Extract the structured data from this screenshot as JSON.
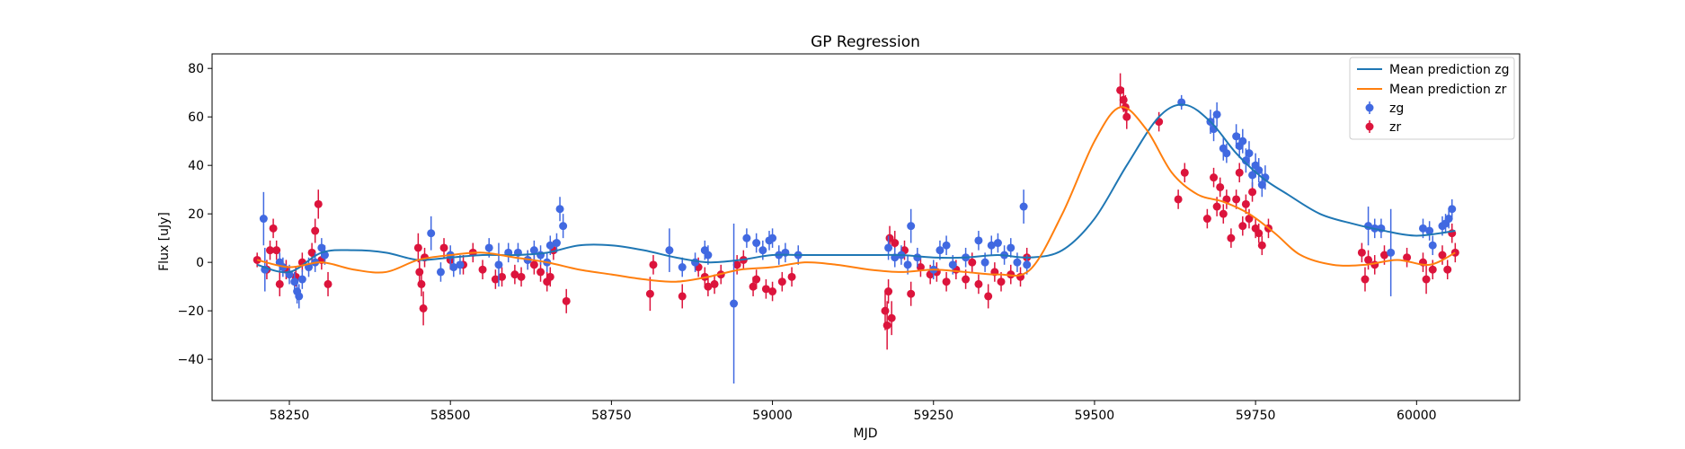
{
  "chart_data": {
    "type": "scatter",
    "title": "GP Regression",
    "xlabel": "MJD",
    "ylabel": "Flux [uJy]",
    "xlim": [
      58130,
      60160
    ],
    "ylim": [
      -57,
      86
    ],
    "xticks": [
      58250,
      58500,
      58750,
      59000,
      59250,
      59500,
      59750,
      60000
    ],
    "yticks": [
      -40,
      -20,
      0,
      20,
      40,
      60,
      80
    ],
    "grid": false,
    "legend_position": "top-right",
    "legend": [
      "Mean prediction zg",
      "Mean prediction zr",
      "zg",
      "zr"
    ],
    "colors": {
      "mean_zg": "#1f77b4",
      "mean_zr": "#ff7f0e",
      "zg": "#4169e1",
      "zr": "#dc143c"
    },
    "lines": [
      {
        "name": "Mean prediction zg",
        "color": "#1f77b4",
        "x": [
          58200,
          58250,
          58300,
          58350,
          58400,
          58450,
          58500,
          58550,
          58600,
          58650,
          58700,
          58750,
          58800,
          58850,
          58900,
          58950,
          59000,
          59050,
          59100,
          59150,
          59200,
          59250,
          59300,
          59350,
          59400,
          59450,
          59500,
          59550,
          59600,
          59640,
          59680,
          59720,
          59760,
          59800,
          59850,
          59900,
          59950,
          60000,
          60060
        ],
        "y": [
          -1,
          -4,
          4,
          5,
          4,
          1,
          2,
          3,
          3,
          4,
          7,
          7,
          5,
          2,
          0,
          1,
          3,
          3,
          3,
          3,
          3,
          2,
          2,
          3,
          2,
          5,
          18,
          40,
          60,
          65,
          58,
          45,
          35,
          28,
          20,
          16,
          13,
          11,
          13
        ]
      },
      {
        "name": "Mean prediction zr",
        "color": "#ff7f0e",
        "x": [
          58200,
          58250,
          58300,
          58350,
          58400,
          58450,
          58500,
          58550,
          58600,
          58650,
          58700,
          58750,
          58800,
          58850,
          58900,
          58950,
          59000,
          59050,
          59100,
          59150,
          59200,
          59250,
          59300,
          59350,
          59400,
          59450,
          59500,
          59540,
          59580,
          59620,
          59660,
          59700,
          59740,
          59780,
          59820,
          59870,
          59920,
          59970,
          60020,
          60060
        ],
        "y": [
          1,
          -2,
          0,
          -3,
          -4,
          1,
          3,
          4,
          2,
          0,
          -3,
          -5,
          -7,
          -8,
          -6,
          -3,
          -2,
          0,
          -1,
          -3,
          -4,
          -3,
          -4,
          -5,
          -3,
          20,
          50,
          64,
          55,
          37,
          28,
          25,
          20,
          12,
          3,
          -1,
          -1,
          1,
          -1,
          4
        ]
      }
    ],
    "series": [
      {
        "name": "zg",
        "color": "#4169e1",
        "points": [
          [
            58210,
            18,
            11
          ],
          [
            58212,
            -3,
            9
          ],
          [
            58235,
            0,
            4
          ],
          [
            58240,
            -2,
            4
          ],
          [
            58250,
            -5,
            4
          ],
          [
            58258,
            -8,
            4
          ],
          [
            58262,
            -12,
            5
          ],
          [
            58265,
            -14,
            5
          ],
          [
            58270,
            -7,
            4
          ],
          [
            58280,
            -2,
            4
          ],
          [
            58290,
            0,
            4
          ],
          [
            58300,
            6,
            4
          ],
          [
            58305,
            3,
            4
          ],
          [
            58470,
            12,
            7
          ],
          [
            58485,
            -4,
            4
          ],
          [
            58500,
            3,
            4
          ],
          [
            58505,
            -2,
            4
          ],
          [
            58515,
            -1,
            4
          ],
          [
            58560,
            6,
            4
          ],
          [
            58575,
            -1,
            9
          ],
          [
            58590,
            4,
            4
          ],
          [
            58605,
            4,
            4
          ],
          [
            58620,
            1,
            4
          ],
          [
            58630,
            5,
            4
          ],
          [
            58640,
            3,
            4
          ],
          [
            58650,
            0,
            4
          ],
          [
            58655,
            7,
            4
          ],
          [
            58665,
            8,
            4
          ],
          [
            58670,
            22,
            5
          ],
          [
            58675,
            15,
            5
          ],
          [
            58840,
            5,
            9
          ],
          [
            58860,
            -2,
            4
          ],
          [
            58880,
            0,
            4
          ],
          [
            58895,
            5,
            4
          ],
          [
            58900,
            3,
            4
          ],
          [
            58940,
            -17,
            33
          ],
          [
            58960,
            10,
            4
          ],
          [
            58975,
            8,
            4
          ],
          [
            58985,
            5,
            4
          ],
          [
            58995,
            9,
            4
          ],
          [
            59000,
            10,
            4
          ],
          [
            59010,
            3,
            4
          ],
          [
            59020,
            4,
            4
          ],
          [
            59040,
            3,
            4
          ],
          [
            59180,
            6,
            5
          ],
          [
            59190,
            2,
            4
          ],
          [
            59200,
            3,
            4
          ],
          [
            59210,
            -1,
            4
          ],
          [
            59215,
            15,
            7
          ],
          [
            59225,
            2,
            4
          ],
          [
            59250,
            -3,
            4
          ],
          [
            59260,
            5,
            4
          ],
          [
            59270,
            7,
            4
          ],
          [
            59280,
            -1,
            4
          ],
          [
            59300,
            2,
            4
          ],
          [
            59320,
            9,
            4
          ],
          [
            59330,
            0,
            4
          ],
          [
            59340,
            7,
            4
          ],
          [
            59350,
            8,
            4
          ],
          [
            59360,
            3,
            4
          ],
          [
            59370,
            6,
            4
          ],
          [
            59380,
            0,
            4
          ],
          [
            59390,
            23,
            7
          ],
          [
            59395,
            -1,
            4
          ],
          [
            59635,
            66,
            3
          ],
          [
            59680,
            58,
            5
          ],
          [
            59685,
            55,
            5
          ],
          [
            59690,
            61,
            5
          ],
          [
            59700,
            47,
            5
          ],
          [
            59705,
            45,
            4
          ],
          [
            59720,
            52,
            5
          ],
          [
            59725,
            48,
            5
          ],
          [
            59730,
            50,
            5
          ],
          [
            59735,
            42,
            5
          ],
          [
            59740,
            45,
            5
          ],
          [
            59745,
            36,
            5
          ],
          [
            59750,
            40,
            5
          ],
          [
            59755,
            38,
            5
          ],
          [
            59760,
            32,
            5
          ],
          [
            59765,
            35,
            5
          ],
          [
            59925,
            15,
            8
          ],
          [
            59935,
            14,
            4
          ],
          [
            59945,
            14,
            4
          ],
          [
            59960,
            4,
            18
          ],
          [
            60010,
            14,
            4
          ],
          [
            60020,
            13,
            4
          ],
          [
            60025,
            7,
            4
          ],
          [
            60040,
            15,
            4
          ],
          [
            60045,
            16,
            4
          ],
          [
            60050,
            18,
            4
          ],
          [
            60055,
            22,
            4
          ]
        ]
      },
      {
        "name": "zr",
        "color": "#dc143c",
        "points": [
          [
            58200,
            1,
            3
          ],
          [
            58215,
            -3,
            4
          ],
          [
            58220,
            5,
            4
          ],
          [
            58225,
            14,
            4
          ],
          [
            58230,
            5,
            4
          ],
          [
            58235,
            -9,
            5
          ],
          [
            58245,
            -3,
            4
          ],
          [
            58260,
            -6,
            4
          ],
          [
            58270,
            0,
            4
          ],
          [
            58285,
            4,
            4
          ],
          [
            58290,
            13,
            5
          ],
          [
            58295,
            24,
            6
          ],
          [
            58300,
            1,
            4
          ],
          [
            58310,
            -9,
            5
          ],
          [
            58450,
            6,
            6
          ],
          [
            58452,
            -4,
            5
          ],
          [
            58455,
            -9,
            5
          ],
          [
            58458,
            -19,
            7
          ],
          [
            58460,
            2,
            4
          ],
          [
            58490,
            6,
            4
          ],
          [
            58500,
            1,
            4
          ],
          [
            58520,
            -1,
            4
          ],
          [
            58535,
            4,
            4
          ],
          [
            58550,
            -3,
            4
          ],
          [
            58570,
            -7,
            4
          ],
          [
            58580,
            -6,
            4
          ],
          [
            58600,
            -5,
            4
          ],
          [
            58610,
            -6,
            4
          ],
          [
            58620,
            1,
            4
          ],
          [
            58630,
            -1,
            4
          ],
          [
            58640,
            -4,
            4
          ],
          [
            58650,
            -8,
            4
          ],
          [
            58655,
            -6,
            4
          ],
          [
            58660,
            5,
            4
          ],
          [
            58680,
            -16,
            5
          ],
          [
            58810,
            -13,
            7
          ],
          [
            58815,
            -1,
            4
          ],
          [
            58860,
            -14,
            5
          ],
          [
            58885,
            -2,
            4
          ],
          [
            58895,
            -6,
            4
          ],
          [
            58900,
            -10,
            4
          ],
          [
            58910,
            -9,
            4
          ],
          [
            58920,
            -5,
            4
          ],
          [
            58945,
            -1,
            4
          ],
          [
            58955,
            1,
            4
          ],
          [
            58970,
            -10,
            4
          ],
          [
            58975,
            -7,
            4
          ],
          [
            58990,
            -11,
            4
          ],
          [
            59000,
            -12,
            4
          ],
          [
            59015,
            -8,
            4
          ],
          [
            59030,
            -6,
            4
          ],
          [
            59175,
            -20,
            8
          ],
          [
            59178,
            -26,
            10
          ],
          [
            59180,
            -12,
            5
          ],
          [
            59182,
            10,
            5
          ],
          [
            59185,
            -23,
            7
          ],
          [
            59190,
            8,
            5
          ],
          [
            59205,
            5,
            4
          ],
          [
            59215,
            -13,
            5
          ],
          [
            59230,
            -2,
            4
          ],
          [
            59245,
            -5,
            4
          ],
          [
            59255,
            -4,
            4
          ],
          [
            59270,
            -8,
            4
          ],
          [
            59285,
            -3,
            4
          ],
          [
            59300,
            -7,
            4
          ],
          [
            59310,
            0,
            4
          ],
          [
            59320,
            -9,
            4
          ],
          [
            59335,
            -14,
            5
          ],
          [
            59345,
            -4,
            4
          ],
          [
            59355,
            -8,
            4
          ],
          [
            59370,
            -5,
            4
          ],
          [
            59385,
            -6,
            4
          ],
          [
            59395,
            2,
            4
          ],
          [
            59540,
            71,
            7
          ],
          [
            59545,
            67,
            5
          ],
          [
            59548,
            64,
            5
          ],
          [
            59550,
            60,
            5
          ],
          [
            59600,
            58,
            4
          ],
          [
            59630,
            26,
            4
          ],
          [
            59640,
            37,
            4
          ],
          [
            59675,
            18,
            4
          ],
          [
            59685,
            35,
            4
          ],
          [
            59690,
            23,
            4
          ],
          [
            59695,
            31,
            4
          ],
          [
            59700,
            20,
            4
          ],
          [
            59705,
            26,
            4
          ],
          [
            59712,
            10,
            4
          ],
          [
            59720,
            26,
            4
          ],
          [
            59725,
            37,
            4
          ],
          [
            59730,
            15,
            4
          ],
          [
            59735,
            24,
            4
          ],
          [
            59740,
            18,
            4
          ],
          [
            59745,
            29,
            4
          ],
          [
            59750,
            14,
            4
          ],
          [
            59755,
            12,
            4
          ],
          [
            59760,
            7,
            4
          ],
          [
            59770,
            14,
            4
          ],
          [
            59915,
            4,
            4
          ],
          [
            59920,
            -7,
            5
          ],
          [
            59925,
            1,
            4
          ],
          [
            59935,
            -1,
            4
          ],
          [
            59950,
            3,
            4
          ],
          [
            59985,
            2,
            4
          ],
          [
            60010,
            0,
            4
          ],
          [
            60015,
            -7,
            6
          ],
          [
            60025,
            -3,
            4
          ],
          [
            60040,
            3,
            4
          ],
          [
            60048,
            -3,
            4
          ],
          [
            60055,
            12,
            4
          ],
          [
            60060,
            4,
            4
          ]
        ]
      }
    ]
  }
}
